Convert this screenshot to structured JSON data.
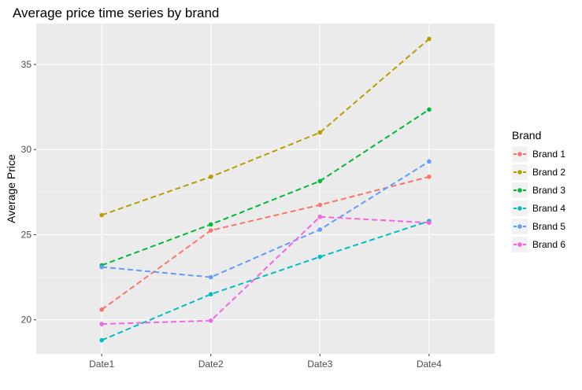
{
  "chart_data": {
    "type": "line",
    "title": "Average price time series by brand",
    "xlabel": "",
    "ylabel": "Average Price",
    "categories": [
      "Date1",
      "Date2",
      "Date3",
      "Date4"
    ],
    "ylim": [
      18.0,
      37.4
    ],
    "yticks": [
      20,
      25,
      30,
      35
    ],
    "grid": true,
    "legend": {
      "title": "Brand",
      "position": "right"
    },
    "line_style": "dashed",
    "series": [
      {
        "name": "Brand 1",
        "color": "#F8766D",
        "values": [
          20.6,
          25.25,
          26.75,
          28.4
        ]
      },
      {
        "name": "Brand 2",
        "color": "#B79F00",
        "values": [
          26.15,
          28.4,
          31.0,
          36.5
        ]
      },
      {
        "name": "Brand 3",
        "color": "#00BA38",
        "values": [
          23.2,
          25.6,
          28.15,
          32.35
        ]
      },
      {
        "name": "Brand 4",
        "color": "#00BFC4",
        "values": [
          18.8,
          21.5,
          23.7,
          25.8
        ]
      },
      {
        "name": "Brand 5",
        "color": "#619CFF",
        "values": [
          23.1,
          22.5,
          25.3,
          29.3
        ]
      },
      {
        "name": "Brand 6",
        "color": "#F564E3",
        "values": [
          19.75,
          19.95,
          26.05,
          25.7
        ]
      }
    ]
  }
}
